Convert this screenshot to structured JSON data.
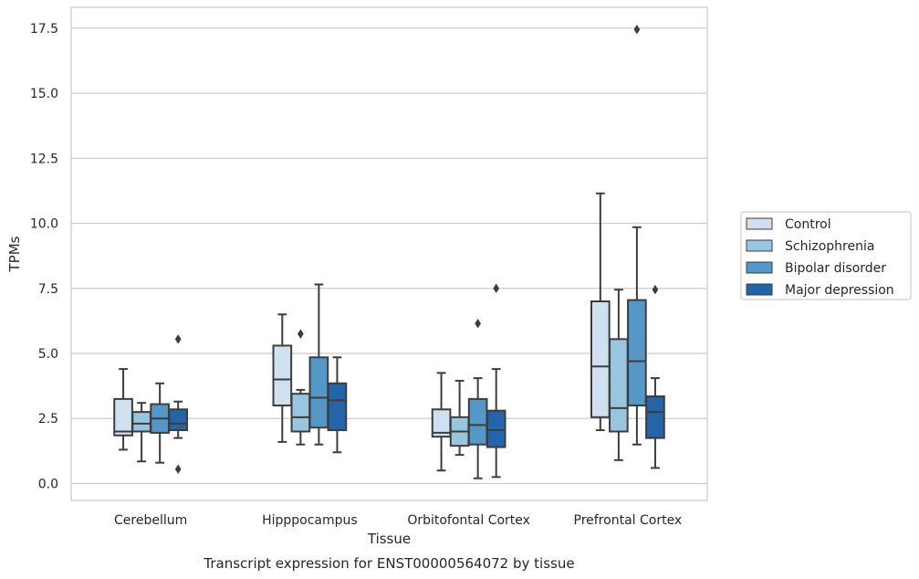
{
  "chart_data": {
    "type": "box",
    "title": "",
    "caption": "Transcript expression for ENST00000564072 by tissue",
    "xlabel": "Tissue",
    "ylabel": "TPMs",
    "ylim": [
      -0.65,
      18.3
    ],
    "yticks": [
      0.0,
      2.5,
      5.0,
      7.5,
      10.0,
      12.5,
      15.0,
      17.5
    ],
    "ytick_labels": [
      "0.0",
      "2.5",
      "5.0",
      "7.5",
      "10.0",
      "12.5",
      "15.0",
      "17.5"
    ],
    "grid": "horizontal",
    "legend_position": "right",
    "categories": [
      "Cerebellum",
      "Hipppocampus",
      "Orbitofontal Cortex",
      "Prefrontal Cortex"
    ],
    "series": [
      {
        "name": "Control",
        "color": "#cfe0f1",
        "boxes": [
          {
            "whislo": 1.3,
            "q1": 1.85,
            "med": 2.0,
            "q3": 3.25,
            "whishi": 4.4,
            "fliers": []
          },
          {
            "whislo": 1.6,
            "q1": 3.0,
            "med": 4.0,
            "q3": 5.3,
            "whishi": 6.5,
            "fliers": []
          },
          {
            "whislo": 0.5,
            "q1": 1.8,
            "med": 1.95,
            "q3": 2.85,
            "whishi": 4.25,
            "fliers": []
          },
          {
            "whislo": 2.05,
            "q1": 2.55,
            "med": 4.5,
            "q3": 7.0,
            "whishi": 11.15,
            "fliers": []
          }
        ]
      },
      {
        "name": "Schizophrenia",
        "color": "#9ac5e0",
        "boxes": [
          {
            "whislo": 0.85,
            "q1": 2.0,
            "med": 2.3,
            "q3": 2.75,
            "whishi": 3.1,
            "fliers": []
          },
          {
            "whislo": 1.5,
            "q1": 2.0,
            "med": 2.55,
            "q3": 3.45,
            "whishi": 3.6,
            "fliers": [
              5.75
            ]
          },
          {
            "whislo": 1.1,
            "q1": 1.45,
            "med": 2.0,
            "q3": 2.55,
            "whishi": 3.95,
            "fliers": []
          },
          {
            "whislo": 0.9,
            "q1": 2.0,
            "med": 2.9,
            "q3": 5.55,
            "whishi": 7.45,
            "fliers": []
          }
        ]
      },
      {
        "name": "Bipolar disorder",
        "color": "#5597c7",
        "boxes": [
          {
            "whislo": 0.8,
            "q1": 1.95,
            "med": 2.5,
            "q3": 3.05,
            "whishi": 3.85,
            "fliers": []
          },
          {
            "whislo": 1.5,
            "q1": 2.15,
            "med": 3.3,
            "q3": 4.85,
            "whishi": 7.65,
            "fliers": []
          },
          {
            "whislo": 0.2,
            "q1": 1.5,
            "med": 2.25,
            "q3": 3.25,
            "whishi": 4.05,
            "fliers": [
              6.15
            ]
          },
          {
            "whislo": 1.5,
            "q1": 3.0,
            "med": 4.7,
            "q3": 7.05,
            "whishi": 9.85,
            "fliers": [
              17.45
            ]
          }
        ]
      },
      {
        "name": "Major depression",
        "color": "#2464a8",
        "boxes": [
          {
            "whislo": 1.75,
            "q1": 2.05,
            "med": 2.3,
            "q3": 2.85,
            "whishi": 3.15,
            "fliers": [
              5.55,
              0.55
            ]
          },
          {
            "whislo": 1.2,
            "q1": 2.05,
            "med": 3.2,
            "q3": 3.85,
            "whishi": 4.85,
            "fliers": []
          },
          {
            "whislo": 0.25,
            "q1": 1.4,
            "med": 2.05,
            "q3": 2.8,
            "whishi": 4.4,
            "fliers": [
              7.5
            ]
          },
          {
            "whislo": 0.6,
            "q1": 1.75,
            "med": 2.75,
            "q3": 3.35,
            "whishi": 4.05,
            "fliers": [
              7.45
            ]
          }
        ]
      }
    ]
  }
}
